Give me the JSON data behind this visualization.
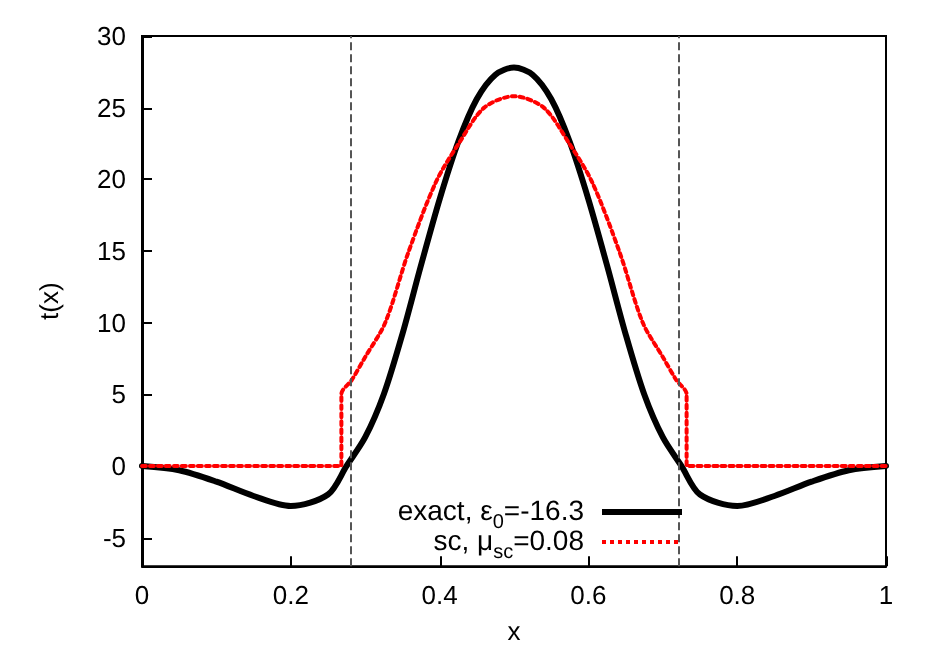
{
  "chart_data": {
    "type": "line",
    "xlabel": "x",
    "ylabel": "t(x)",
    "xlim": [
      0,
      1
    ],
    "xticks": [
      0,
      0.2,
      0.4,
      0.6,
      0.8,
      1
    ],
    "ylim": [
      -7,
      30
    ],
    "yticks": [
      -5,
      0,
      5,
      10,
      15,
      20,
      25,
      30
    ],
    "grid": false,
    "legend": "bottom",
    "marker": "none",
    "series": [
      {
        "name": "exact, ε$_{0}$=-16.3",
        "color": "#000000",
        "line_style": "solid",
        "x": [
          0,
          0.05,
          0.1,
          0.15,
          0.2,
          0.25,
          0.275,
          0.3,
          0.325,
          0.35,
          0.375,
          0.4,
          0.425,
          0.45,
          0.475,
          0.5,
          0.525,
          0.55,
          0.575,
          0.6,
          0.625,
          0.65,
          0.675,
          0.7,
          0.725,
          0.75,
          0.8,
          0.85,
          0.9,
          0.95,
          1
        ],
        "values": [
          0,
          -0.3,
          -1.1,
          -2.1,
          -2.8,
          -2.0,
          0,
          2.0,
          5,
          9.2,
          14,
          18.6,
          22.6,
          25.6,
          27.3,
          27.8,
          27.3,
          25.6,
          22.6,
          18.6,
          14,
          9.2,
          5,
          2.0,
          0,
          -2.0,
          -2.8,
          -2.1,
          -1.1,
          -0.3,
          0
        ]
      },
      {
        "name": "sc, μ$_{sc}$=0.08",
        "color": "#ff0000",
        "line_style": "dotted",
        "x": [
          0,
          0.268,
          0.268,
          0.282,
          0.3,
          0.327,
          0.358,
          0.395,
          0.427,
          0.46,
          0.5,
          0.54,
          0.573,
          0.605,
          0.642,
          0.673,
          0.7,
          0.718,
          0.732,
          0.732,
          1
        ],
        "values": [
          0,
          0,
          5,
          6,
          7.6,
          10,
          14.9,
          19.8,
          22.6,
          25,
          25.8,
          25,
          22.6,
          19.8,
          14.9,
          10,
          7.6,
          6,
          5,
          0,
          0
        ]
      }
    ],
    "ref_lines": [
      {
        "axis": "x",
        "value": 0.282,
        "label": null,
        "color": "#555555",
        "line_style": "dashed"
      },
      {
        "axis": "x",
        "value": 0.718,
        "label": null,
        "color": "#555555",
        "line_style": "dashed"
      }
    ]
  }
}
